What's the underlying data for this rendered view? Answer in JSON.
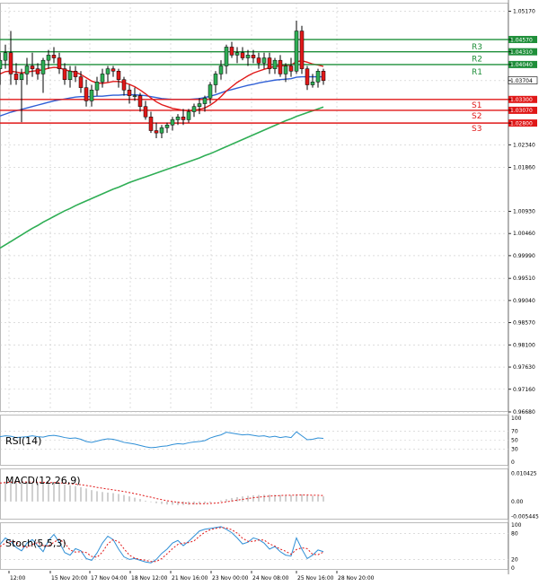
{
  "colors": {
    "background": "#ffffff",
    "grid": "#c9c9c9",
    "resistance": "#1f8f3a",
    "support": "#e01818",
    "ma_fast": "#e01818",
    "ma_mid": "#2f5fd6",
    "ma_slow": "#2fae55",
    "bull_body": "#2fae55",
    "bear_body": "#e01818",
    "wick": "#000000",
    "rsi": "#2f8fd6",
    "macd_hist": "#b0b0b0",
    "macd_signal": "#e01818",
    "stoch_main": "#2f8fd6",
    "stoch_signal": "#e01818"
  },
  "chart_data": [
    {
      "type": "candlestick",
      "ylim": [
        0.9668,
        1.0535
      ],
      "y_ticks": [
        1.0517,
        1.0457,
        1.0431,
        1.0404,
        1.037,
        1.033,
        1.0307,
        1.028,
        1.0234,
        1.0186,
        1.0093,
        1.0046,
        0.9999,
        0.9951,
        0.9904,
        0.9857,
        0.981,
        0.9763,
        0.9716,
        0.9668
      ],
      "y_tick_labels": [
        "1.05170",
        "1.04570",
        "1.04310",
        "1.04040",
        "1.03704",
        "1.03300",
        "1.03070",
        "1.02800",
        "1.02340",
        "1.01860",
        "1.00930",
        "1.00460",
        "0.99990",
        "0.99510",
        "0.99040",
        "0.98570",
        "0.98100",
        "0.97630",
        "0.97160",
        "0.96680"
      ],
      "x_labels": [
        "12:00",
        "15 Nov 20:00",
        "17 Nov 04:00",
        "18 Nov 12:00",
        "21 Nov 16:00",
        "23 Nov 00:00",
        "24 Nov 08:00",
        "25 Nov 16:00",
        "28 Nov 20:00"
      ],
      "current_price": 1.03704,
      "current_price_label": "1.03704",
      "levels": [
        {
          "name": "R3",
          "value": 1.0457,
          "value_label": "1.04570",
          "kind": "resistance"
        },
        {
          "name": "R2",
          "value": 1.0431,
          "value_label": "1.04310",
          "kind": "resistance"
        },
        {
          "name": "R1",
          "value": 1.0404,
          "value_label": "1.04040",
          "kind": "resistance"
        },
        {
          "name": "S1",
          "value": 1.033,
          "value_label": "1.03300",
          "kind": "support"
        },
        {
          "name": "S2",
          "value": 1.0307,
          "value_label": "1.03070",
          "kind": "support"
        },
        {
          "name": "S3",
          "value": 1.028,
          "value_label": "1.02800",
          "kind": "support"
        }
      ],
      "candles": [
        [
          1.0395,
          1.0429,
          1.0361,
          1.0413
        ],
        [
          1.0413,
          1.0446,
          1.0395,
          1.0429
        ],
        [
          1.0429,
          1.0475,
          1.0361,
          1.0384
        ],
        [
          1.0384,
          1.0407,
          1.0361,
          1.0372
        ],
        [
          1.0372,
          1.0395,
          1.0282,
          1.0384
        ],
        [
          1.0384,
          1.0418,
          1.0361,
          1.0401
        ],
        [
          1.0401,
          1.0429,
          1.0378,
          1.0395
        ],
        [
          1.0395,
          1.0407,
          1.0372,
          1.0384
        ],
        [
          1.0384,
          1.0418,
          1.0344,
          1.0413
        ],
        [
          1.0413,
          1.0435,
          1.0395,
          1.0424
        ],
        [
          1.0424,
          1.0441,
          1.0407,
          1.0418
        ],
        [
          1.0418,
          1.0429,
          1.0384,
          1.0395
        ],
        [
          1.0395,
          1.0407,
          1.0361,
          1.0372
        ],
        [
          1.0372,
          1.0401,
          1.0355,
          1.039
        ],
        [
          1.039,
          1.0401,
          1.0367,
          1.0378
        ],
        [
          1.0378,
          1.039,
          1.0344,
          1.0355
        ],
        [
          1.0355,
          1.0372,
          1.0315,
          1.0327
        ],
        [
          1.0327,
          1.0361,
          1.0315,
          1.035
        ],
        [
          1.035,
          1.0378,
          1.0338,
          1.0367
        ],
        [
          1.0367,
          1.0395,
          1.0355,
          1.0384
        ],
        [
          1.0384,
          1.0401,
          1.0367,
          1.0395
        ],
        [
          1.0395,
          1.0401,
          1.0378,
          1.039
        ],
        [
          1.039,
          1.0395,
          1.0355,
          1.0372
        ],
        [
          1.0372,
          1.0378,
          1.0338,
          1.035
        ],
        [
          1.035,
          1.0361,
          1.0321,
          1.0338
        ],
        [
          1.0338,
          1.0355,
          1.0327,
          1.0338
        ],
        [
          1.0338,
          1.0344,
          1.0304,
          1.0315
        ],
        [
          1.0315,
          1.0327,
          1.0287,
          1.0293
        ],
        [
          1.0293,
          1.0304,
          1.0259,
          1.0264
        ],
        [
          1.0264,
          1.0281,
          1.0248,
          1.0259
        ],
        [
          1.0259,
          1.0276,
          1.0248,
          1.027
        ],
        [
          1.027,
          1.0281,
          1.0259,
          1.0276
        ],
        [
          1.0276,
          1.0293,
          1.0264,
          1.0287
        ],
        [
          1.0287,
          1.0299,
          1.0276,
          1.0293
        ],
        [
          1.0293,
          1.031,
          1.0276,
          1.0287
        ],
        [
          1.0287,
          1.031,
          1.0281,
          1.0304
        ],
        [
          1.0304,
          1.0321,
          1.0293,
          1.0315
        ],
        [
          1.0315,
          1.0333,
          1.0299,
          1.0321
        ],
        [
          1.0321,
          1.0338,
          1.0304,
          1.0333
        ],
        [
          1.0333,
          1.0367,
          1.0321,
          1.0361
        ],
        [
          1.0361,
          1.039,
          1.0344,
          1.0384
        ],
        [
          1.0384,
          1.0413,
          1.0372,
          1.0401
        ],
        [
          1.0401,
          1.0446,
          1.0384,
          1.0441
        ],
        [
          1.0441,
          1.0452,
          1.0418,
          1.0424
        ],
        [
          1.0424,
          1.0441,
          1.0407,
          1.0429
        ],
        [
          1.0429,
          1.0441,
          1.0413,
          1.0418
        ],
        [
          1.0418,
          1.0435,
          1.0401,
          1.0424
        ],
        [
          1.0424,
          1.0435,
          1.0407,
          1.0418
        ],
        [
          1.0418,
          1.0429,
          1.0395,
          1.0407
        ],
        [
          1.0407,
          1.0429,
          1.0395,
          1.0418
        ],
        [
          1.0418,
          1.0429,
          1.0384,
          1.0395
        ],
        [
          1.0395,
          1.0418,
          1.0384,
          1.0413
        ],
        [
          1.0413,
          1.0424,
          1.0378,
          1.0384
        ],
        [
          1.0384,
          1.0407,
          1.0367,
          1.0401
        ],
        [
          1.0401,
          1.0418,
          1.0378,
          1.039
        ],
        [
          1.039,
          1.0497,
          1.0384,
          1.0475
        ],
        [
          1.0475,
          1.0486,
          1.0384,
          1.0395
        ],
        [
          1.0395,
          1.0401,
          1.035,
          1.0361
        ],
        [
          1.0361,
          1.0384,
          1.0355,
          1.0367
        ],
        [
          1.0367,
          1.0395,
          1.0355,
          1.039
        ],
        [
          1.039,
          1.0395,
          1.0361,
          1.037
        ]
      ],
      "ma_fast": [
        1.0384,
        1.0389,
        1.039,
        1.0388,
        1.0386,
        1.0388,
        1.039,
        1.0391,
        1.0393,
        1.0396,
        1.0398,
        1.0397,
        1.0393,
        1.039,
        1.0388,
        1.0383,
        1.0376,
        1.0369,
        1.0365,
        1.0364,
        1.0366,
        1.0368,
        1.0368,
        1.0366,
        1.0362,
        1.0357,
        1.035,
        1.0342,
        1.0333,
        1.0325,
        1.0319,
        1.0315,
        1.0311,
        1.0309,
        1.0307,
        1.0306,
        1.0307,
        1.0309,
        1.0312,
        1.0318,
        1.0326,
        1.0336,
        1.0348,
        1.0357,
        1.0366,
        1.0373,
        1.038,
        1.0386,
        1.039,
        1.0394,
        1.0397,
        1.04,
        1.0401,
        1.0402,
        1.0403,
        1.041,
        1.0412,
        1.0409,
        1.0405,
        1.0403,
        1.04
      ],
      "ma_mid": [
        1.0295,
        1.0299,
        1.0303,
        1.0306,
        1.0309,
        1.0312,
        1.0315,
        1.0318,
        1.0321,
        1.0324,
        1.0327,
        1.0329,
        1.0331,
        1.0333,
        1.0335,
        1.0336,
        1.0336,
        1.0336,
        1.0337,
        1.0337,
        1.0338,
        1.0339,
        1.0339,
        1.034,
        1.034,
        1.034,
        1.0339,
        1.0338,
        1.0336,
        1.0334,
        1.0332,
        1.0331,
        1.033,
        1.033,
        1.033,
        1.033,
        1.0331,
        1.0332,
        1.0334,
        1.0337,
        1.034,
        1.0344,
        1.0348,
        1.0351,
        1.0354,
        1.0357,
        1.036,
        1.0362,
        1.0365,
        1.0367,
        1.0369,
        1.0371,
        1.0372,
        1.0373,
        1.0374,
        1.0377,
        1.0378,
        1.0378,
        1.0378,
        1.0378,
        1.0378
      ],
      "ma_slow": [
        1.0015,
        1.0022,
        1.0029,
        1.0036,
        1.0043,
        1.005,
        1.0057,
        1.0063,
        1.007,
        1.0076,
        1.0082,
        1.0088,
        1.0094,
        1.0099,
        1.0105,
        1.011,
        1.0115,
        1.012,
        1.0125,
        1.013,
        1.0135,
        1.014,
        1.0144,
        1.0149,
        1.0154,
        1.0158,
        1.0162,
        1.0166,
        1.017,
        1.0174,
        1.0178,
        1.0182,
        1.0186,
        1.019,
        1.0194,
        1.0198,
        1.0202,
        1.0206,
        1.0211,
        1.0215,
        1.022,
        1.0225,
        1.023,
        1.0235,
        1.024,
        1.0245,
        1.025,
        1.0255,
        1.026,
        1.0265,
        1.027,
        1.0275,
        1.028,
        1.0285,
        1.0289,
        1.0294,
        1.0298,
        1.0302,
        1.0306,
        1.031,
        1.0314
      ]
    },
    {
      "type": "line",
      "title": "RSI(14)",
      "ylim": [
        0,
        100
      ],
      "y_tick_labels": [
        "100",
        "70",
        "50",
        "30",
        "0"
      ],
      "y_ticks": [
        100,
        70,
        50,
        30,
        0
      ],
      "values": [
        58,
        60,
        59,
        56,
        57,
        58,
        60,
        58,
        57,
        60,
        61,
        59,
        56,
        54,
        55,
        52,
        47,
        45,
        48,
        51,
        53,
        52,
        49,
        45,
        43,
        41,
        38,
        35,
        33,
        34,
        36,
        37,
        40,
        42,
        41,
        44,
        46,
        47,
        49,
        55,
        59,
        62,
        68,
        66,
        64,
        62,
        63,
        61,
        59,
        60,
        57,
        59,
        56,
        58,
        56,
        69,
        60,
        51,
        52,
        55,
        54
      ]
    },
    {
      "type": "bar",
      "title": "MACD(12,26,9)",
      "ylim": [
        -0.006,
        0.0112
      ],
      "y_tick_labels": [
        "0.010425",
        "0.00",
        "-0.005445"
      ],
      "y_ticks": [
        0.010425,
        0.0,
        -0.005445
      ],
      "values": [
        0.0072,
        0.0074,
        0.0075,
        0.0074,
        0.0072,
        0.0071,
        0.0071,
        0.007,
        0.0069,
        0.0069,
        0.0068,
        0.0066,
        0.0063,
        0.006,
        0.0057,
        0.0053,
        0.0048,
        0.0042,
        0.0038,
        0.0035,
        0.0033,
        0.0031,
        0.0028,
        0.0024,
        0.0019,
        0.0014,
        0.0009,
        0.0003,
        -0.0002,
        -0.0006,
        -0.0009,
        -0.0011,
        -0.0012,
        -0.0013,
        -0.0013,
        -0.0012,
        -0.0011,
        -0.0009,
        -0.0007,
        -0.0004,
        0.0,
        0.0004,
        0.0009,
        0.0013,
        0.0016,
        0.0019,
        0.0021,
        0.0023,
        0.0024,
        0.0025,
        0.0025,
        0.0025,
        0.0024,
        0.0024,
        0.0023,
        0.0026,
        0.0026,
        0.0023,
        0.0021,
        0.002,
        0.0019
      ],
      "signal": [
        0.0068,
        0.007,
        0.0071,
        0.0072,
        0.0072,
        0.0072,
        0.0072,
        0.0071,
        0.0071,
        0.007,
        0.007,
        0.0069,
        0.0068,
        0.0066,
        0.0064,
        0.0062,
        0.0059,
        0.0056,
        0.0052,
        0.0049,
        0.0046,
        0.0043,
        0.004,
        0.0037,
        0.0033,
        0.0029,
        0.0025,
        0.002,
        0.0016,
        0.0011,
        0.0007,
        0.0003,
        0.0,
        -0.0003,
        -0.0005,
        -0.0007,
        -0.0008,
        -0.0008,
        -0.0008,
        -0.0007,
        -0.0006,
        -0.0004,
        -0.0001,
        0.0002,
        0.0005,
        0.0008,
        0.0011,
        0.0014,
        0.0016,
        0.0018,
        0.002,
        0.0021,
        0.0022,
        0.0023,
        0.0023,
        0.0024,
        0.0024,
        0.0024,
        0.0023,
        0.0023,
        0.0022
      ]
    },
    {
      "type": "line",
      "title": "Stoch(5,5,3)",
      "ylim": [
        0,
        100
      ],
      "y_tick_labels": [
        "100",
        "80",
        "20",
        "0"
      ],
      "y_ticks": [
        100,
        80,
        20,
        0
      ],
      "values": [
        55,
        70,
        62,
        48,
        40,
        58,
        66,
        52,
        38,
        64,
        78,
        60,
        36,
        30,
        45,
        40,
        22,
        18,
        35,
        58,
        74,
        66,
        44,
        26,
        20,
        22,
        18,
        14,
        12,
        20,
        34,
        44,
        58,
        64,
        52,
        62,
        74,
        86,
        90,
        92,
        94,
        96,
        90,
        82,
        70,
        56,
        60,
        70,
        66,
        58,
        44,
        50,
        38,
        30,
        28,
        70,
        44,
        22,
        30,
        42,
        38
      ],
      "signal": [
        50,
        58,
        62,
        60,
        50,
        48,
        55,
        59,
        52,
        51,
        60,
        67,
        58,
        42,
        37,
        38,
        36,
        27,
        25,
        37,
        56,
        66,
        61,
        45,
        30,
        23,
        20,
        18,
        15,
        15,
        22,
        33,
        45,
        55,
        58,
        59,
        63,
        74,
        83,
        89,
        92,
        94,
        93,
        89,
        81,
        69,
        62,
        62,
        65,
        65,
        56,
        51,
        44,
        39,
        32,
        43,
        47,
        45,
        32,
        31,
        37
      ]
    }
  ]
}
